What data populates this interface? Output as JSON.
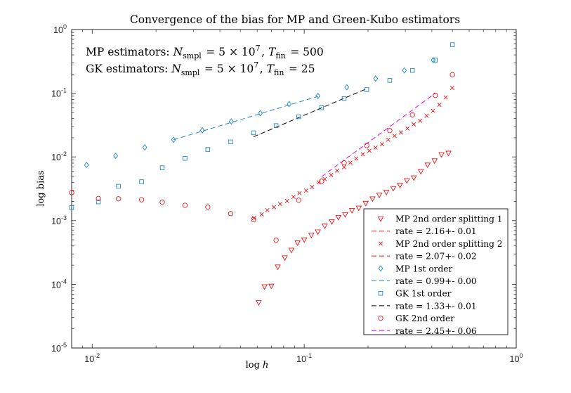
{
  "chart_data": {
    "type": "scatter",
    "title": "Convergence of the bias for MP and Green-Kubo estimators",
    "xlabel": "log h",
    "ylabel": "log bias",
    "xscale": "log",
    "yscale": "log",
    "xlim": [
      0.008,
      1.0
    ],
    "ylim": [
      1e-05,
      1.0
    ],
    "x_ticks": [
      {
        "value": 0.01,
        "label": "10^-2"
      },
      {
        "value": 0.1,
        "label": "10^-1"
      },
      {
        "value": 1.0,
        "label": "10^0"
      }
    ],
    "y_ticks": [
      {
        "value": 1e-05,
        "label": "10^-5"
      },
      {
        "value": 0.0001,
        "label": "10^-4"
      },
      {
        "value": 0.001,
        "label": "10^-3"
      },
      {
        "value": 0.01,
        "label": "10^-2"
      },
      {
        "value": 0.1,
        "label": "10^-1"
      },
      {
        "value": 1.0,
        "label": "10^0"
      }
    ],
    "annotations": [
      "MP estimators: N_smpl = 5 × 10^7, T_fin = 500",
      "GK estimators: N_smpl = 5 × 10^7, T_fin = 25"
    ],
    "legend_position": "bottom-right",
    "series": [
      {
        "name": "MP 2nd order splitting 1",
        "marker": "triangle-down",
        "color": "#e8161b",
        "x": [
          0.061,
          0.065,
          0.07,
          0.075,
          0.081,
          0.087,
          0.093,
          0.1,
          0.108,
          0.116,
          0.125,
          0.135,
          0.145,
          0.156,
          0.168,
          0.181,
          0.195,
          0.21,
          0.226,
          0.244,
          0.263,
          0.283,
          0.305,
          0.329,
          0.355,
          0.382,
          0.412,
          0.444,
          0.479
        ],
        "y": [
          5.2e-05,
          9.2e-05,
          9.4e-05,
          0.000188,
          0.000262,
          0.000345,
          0.000451,
          0.000503,
          0.000592,
          0.000669,
          0.000826,
          0.000967,
          0.00113,
          0.00125,
          0.00145,
          0.00158,
          0.00188,
          0.00221,
          0.00252,
          0.0028,
          0.00321,
          0.00362,
          0.00426,
          0.00471,
          0.00593,
          0.00751,
          0.00874,
          0.0109,
          0.0115
        ]
      },
      {
        "name": "rate = 2.16+- 0.01",
        "line": "dashed",
        "color": "#e8161b",
        "x": [],
        "y": []
      },
      {
        "name": "MP 2nd order splitting 2",
        "marker": "x",
        "color": "#e8161b",
        "x": [
          0.058,
          0.063,
          0.067,
          0.072,
          0.077,
          0.083,
          0.089,
          0.095,
          0.102,
          0.109,
          0.117,
          0.125,
          0.134,
          0.143,
          0.154,
          0.165,
          0.176,
          0.189,
          0.203,
          0.217,
          0.233,
          0.249,
          0.267,
          0.286,
          0.307,
          0.329,
          0.352,
          0.378,
          0.405,
          0.434,
          0.465,
          0.499
        ],
        "y": [
          0.0011,
          0.00125,
          0.00146,
          0.00163,
          0.00182,
          0.00203,
          0.00235,
          0.0027,
          0.00297,
          0.00337,
          0.00399,
          0.00449,
          0.00521,
          0.00611,
          0.00688,
          0.00812,
          0.00944,
          0.011,
          0.0125,
          0.014,
          0.0158,
          0.0186,
          0.0214,
          0.0242,
          0.028,
          0.0325,
          0.037,
          0.0442,
          0.0531,
          0.066,
          0.086,
          0.121
        ]
      },
      {
        "name": "rate = 2.07+- 0.02",
        "line": "dashed",
        "color": "#e8161b",
        "x": [],
        "y": []
      },
      {
        "name": "MP 1st order",
        "marker": "diamond",
        "color": "#1f8ac8",
        "x": [
          0.0094,
          0.0129,
          0.0177,
          0.0242,
          0.0331,
          0.0453,
          0.0621,
          0.0849,
          0.1161,
          0.1588,
          0.2172,
          0.2969,
          0.406
        ],
        "y": [
          0.00748,
          0.0104,
          0.0141,
          0.0186,
          0.0262,
          0.0361,
          0.0486,
          0.0676,
          0.0908,
          0.124,
          0.17,
          0.228,
          0.331
        ]
      },
      {
        "name": "rate = 0.99+- 0.00",
        "line": "dashed",
        "color": "#1f8ac8",
        "x": [
          0.0242,
          0.1161
        ],
        "y": [
          0.0186,
          0.0893
        ]
      },
      {
        "name": "GK 1st order",
        "marker": "square",
        "color": "#1f8ac8",
        "x": [
          0.008,
          0.0107,
          0.0133,
          0.0171,
          0.0214,
          0.0274,
          0.0351,
          0.045,
          0.0577,
          0.0737,
          0.0942,
          0.1208,
          0.1543,
          0.1972,
          0.2533,
          0.3239,
          0.4152,
          0.5
        ],
        "y": [
          0.0016,
          0.00197,
          0.00346,
          0.00408,
          0.00676,
          0.00949,
          0.0131,
          0.0172,
          0.0239,
          0.031,
          0.0427,
          0.0592,
          0.0824,
          0.114,
          0.159,
          0.228,
          0.331,
          0.578
        ]
      },
      {
        "name": "rate = 1.33+- 0.01",
        "line": "dashed",
        "color": "#000000",
        "x": [
          0.0577,
          0.1972
        ],
        "y": [
          0.0207,
          0.1179
        ]
      },
      {
        "name": "GK 2nd order",
        "marker": "circle",
        "color": "#e8161b",
        "x": [
          0.008,
          0.0107,
          0.0133,
          0.0171,
          0.0214,
          0.0274,
          0.0351,
          0.045,
          0.0577,
          0.0737,
          0.0942,
          0.1208,
          0.1543,
          0.1972,
          0.2533,
          0.3239,
          0.4152,
          0.5
        ],
        "y": [
          0.00275,
          0.00222,
          0.0022,
          0.00212,
          0.00195,
          0.00174,
          0.00163,
          0.00129,
          0.00104,
          0.000493,
          0.00209,
          0.00416,
          0.00807,
          0.0151,
          0.0259,
          0.0458,
          0.0929,
          0.195
        ]
      },
      {
        "name": "rate = 2.45+- 0.06",
        "line": "dashed",
        "color": "#e000e0",
        "x": [
          0.1208,
          0.4152
        ],
        "y": [
          0.0049,
          0.0999
        ]
      }
    ]
  }
}
